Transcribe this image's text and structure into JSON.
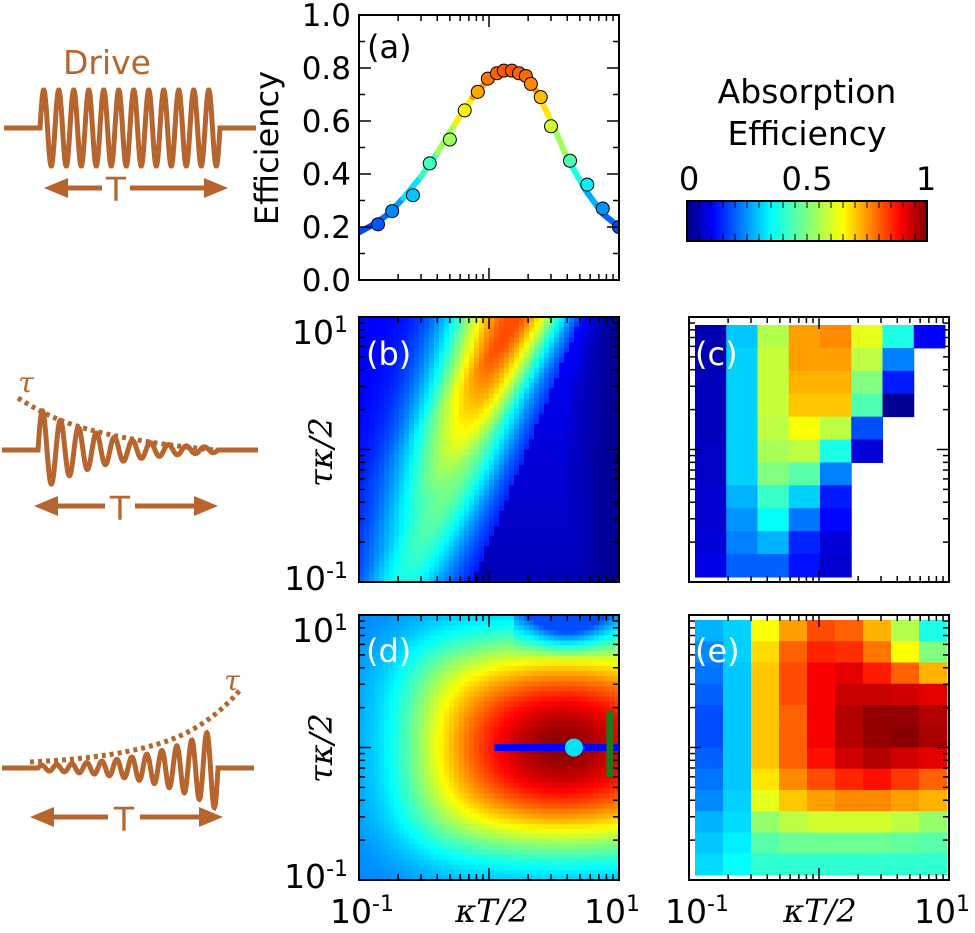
{
  "figure": {
    "schematics": [
      {
        "label": "Drive",
        "period_label": "T",
        "envelope": "square"
      },
      {
        "tau_label": "τ",
        "period_label": "T",
        "envelope": "decaying"
      },
      {
        "tau_label": "τ",
        "period_label": "T",
        "envelope": "rising"
      }
    ],
    "colorbar": {
      "title_line1": "Absorption",
      "title_line2": "Efficiency",
      "ticks": [
        "0",
        "0.5",
        "1"
      ],
      "colormap": "jet",
      "range": [
        0,
        1
      ]
    },
    "axis_labels": {
      "efficiency": "Efficiency",
      "tau_kappa": "τκ/2",
      "kappa_T": "κT/2"
    },
    "colors": {
      "drive": "#b5652d",
      "line_marker": "#0000ff",
      "dot_marker": "#00e5ff",
      "vline_marker": "#1a7a1a"
    }
  },
  "chart_data": [
    {
      "panel": "(a)",
      "type": "line",
      "x_scale": "log",
      "xlim": [
        0.1,
        10
      ],
      "ylim": [
        0,
        1
      ],
      "ylabel": "Efficiency",
      "yticks": [
        "0.0",
        "0.2",
        "0.4",
        "0.6",
        "0.8",
        "1.0"
      ],
      "series": [
        {
          "kind": "theory_curve",
          "x": [
            0.1,
            0.13,
            0.17,
            0.22,
            0.3,
            0.4,
            0.55,
            0.75,
            1.0,
            1.2,
            1.45,
            1.7,
            2.0,
            2.4,
            3.0,
            4.0,
            5.5,
            7.5,
            10
          ],
          "y": [
            0.18,
            0.21,
            0.25,
            0.31,
            0.39,
            0.48,
            0.59,
            0.69,
            0.76,
            0.79,
            0.8,
            0.79,
            0.76,
            0.7,
            0.6,
            0.46,
            0.34,
            0.25,
            0.2
          ]
        },
        {
          "kind": "data_points",
          "x": [
            0.14,
            0.18,
            0.26,
            0.35,
            0.5,
            0.65,
            0.82,
            0.98,
            1.15,
            1.3,
            1.5,
            1.7,
            1.92,
            2.1,
            2.5,
            3.0,
            4.2,
            5.7,
            7.5,
            10
          ],
          "y": [
            0.21,
            0.26,
            0.32,
            0.44,
            0.53,
            0.64,
            0.71,
            0.76,
            0.78,
            0.79,
            0.79,
            0.78,
            0.77,
            0.74,
            0.69,
            0.58,
            0.45,
            0.36,
            0.27,
            0.2
          ]
        }
      ]
    },
    {
      "panel": "(b)",
      "type": "heatmap",
      "x_scale": "log",
      "y_scale": "log",
      "xlim": [
        0.1,
        10
      ],
      "ylim": [
        0.1,
        10
      ],
      "ylabel": "τκ/2",
      "yticks": [
        "10-1",
        "101"
      ]
    },
    {
      "panel": "(c)",
      "type": "heatmap",
      "x_scale": "log",
      "y_scale": "log",
      "xlim": [
        0.1,
        10
      ],
      "ylim": [
        0.1,
        10
      ],
      "rows": [
        [
          0.05,
          0.32,
          0.55,
          0.72,
          0.74,
          0.6,
          0.4,
          0.12
        ],
        [
          0.05,
          0.33,
          0.57,
          0.72,
          0.72,
          0.56,
          0.25,
          -1
        ],
        [
          0.06,
          0.33,
          0.57,
          0.7,
          0.7,
          0.5,
          0.15,
          -1
        ],
        [
          0.06,
          0.33,
          0.57,
          0.68,
          0.68,
          0.45,
          0.02,
          -1
        ],
        [
          0.06,
          0.33,
          0.56,
          0.62,
          0.56,
          0.2,
          -1,
          -1
        ],
        [
          0.07,
          0.33,
          0.54,
          0.56,
          0.4,
          0.09,
          -1,
          -1
        ],
        [
          0.07,
          0.33,
          0.5,
          0.46,
          0.25,
          -1,
          -1,
          -1
        ],
        [
          0.08,
          0.3,
          0.43,
          0.33,
          0.15,
          -1,
          -1,
          -1
        ],
        [
          0.08,
          0.27,
          0.38,
          0.24,
          0.13,
          -1,
          -1,
          -1
        ],
        [
          0.09,
          0.25,
          0.3,
          0.16,
          0.09,
          -1,
          -1,
          -1
        ],
        [
          0.1,
          0.22,
          0.22,
          0.14,
          0.08,
          -1,
          -1,
          -1
        ]
      ]
    },
    {
      "panel": "(d)",
      "type": "heatmap",
      "x_scale": "log",
      "y_scale": "log",
      "xlim": [
        0.1,
        10
      ],
      "ylim": [
        0.1,
        10
      ],
      "xlabel": "κT/2",
      "ylabel": "τκ/2",
      "xticks": [
        "10-1",
        "101"
      ],
      "yticks": [
        "10-1",
        "101"
      ],
      "markers": [
        {
          "kind": "horizontal_line",
          "x": [
            1.1,
            10
          ],
          "y": 1.0
        },
        {
          "kind": "point",
          "x": 4.5,
          "y": 1.0
        },
        {
          "kind": "vertical_line",
          "x": 8.5,
          "y": [
            0.6,
            1.9
          ]
        }
      ]
    },
    {
      "panel": "(e)",
      "type": "heatmap",
      "x_scale": "log",
      "y_scale": "log",
      "xlim": [
        0.1,
        10
      ],
      "ylim": [
        0.1,
        10
      ],
      "xlabel": "κT/2",
      "xticks": [
        "10-1",
        "101"
      ],
      "rows": [
        [
          0.3,
          0.33,
          0.62,
          0.72,
          0.8,
          0.78,
          0.7,
          0.55,
          0.4
        ],
        [
          0.26,
          0.33,
          0.66,
          0.78,
          0.84,
          0.83,
          0.76,
          0.62,
          0.5
        ],
        [
          0.24,
          0.32,
          0.68,
          0.8,
          0.88,
          0.9,
          0.85,
          0.78,
          0.7
        ],
        [
          0.22,
          0.32,
          0.68,
          0.8,
          0.88,
          0.93,
          0.93,
          0.92,
          0.9
        ],
        [
          0.2,
          0.32,
          0.68,
          0.78,
          0.88,
          0.95,
          0.98,
          0.98,
          0.95
        ],
        [
          0.2,
          0.32,
          0.68,
          0.78,
          0.88,
          0.95,
          0.98,
          0.99,
          0.96
        ],
        [
          0.22,
          0.32,
          0.68,
          0.78,
          0.86,
          0.92,
          0.95,
          0.92,
          0.9
        ],
        [
          0.24,
          0.32,
          0.65,
          0.74,
          0.8,
          0.84,
          0.86,
          0.82,
          0.78
        ],
        [
          0.26,
          0.33,
          0.6,
          0.68,
          0.72,
          0.74,
          0.74,
          0.72,
          0.7
        ],
        [
          0.3,
          0.34,
          0.52,
          0.56,
          0.58,
          0.58,
          0.58,
          0.56,
          0.52
        ],
        [
          0.32,
          0.36,
          0.46,
          0.48,
          0.48,
          0.48,
          0.48,
          0.47,
          0.46
        ],
        [
          0.34,
          0.38,
          0.42,
          0.42,
          0.42,
          0.42,
          0.42,
          0.42,
          0.42
        ]
      ]
    }
  ]
}
